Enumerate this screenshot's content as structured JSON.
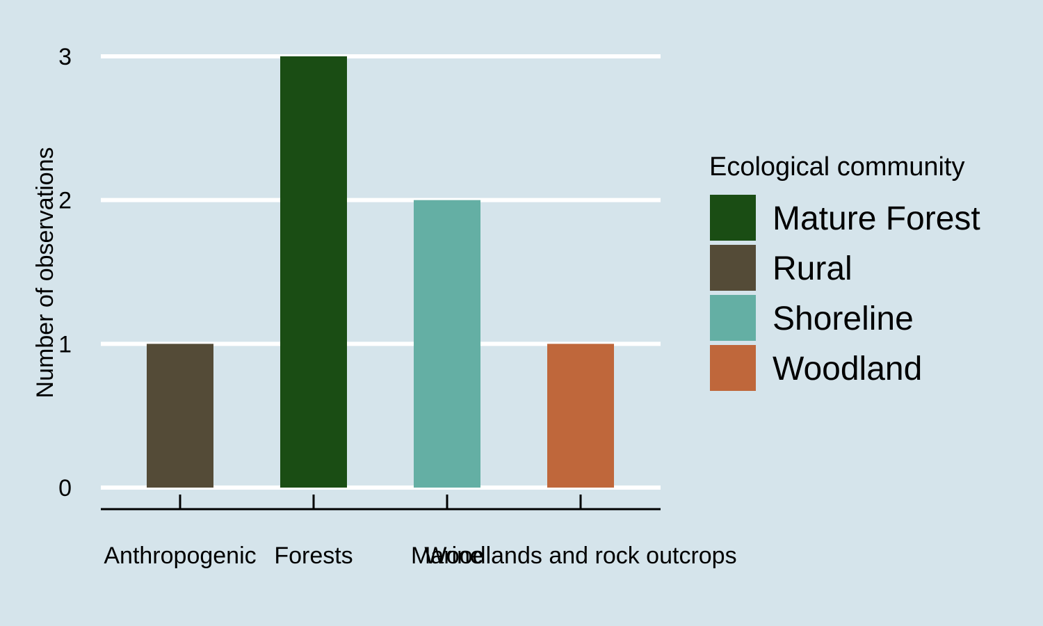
{
  "chart_data": {
    "type": "bar",
    "title": "",
    "xlabel": "",
    "ylabel": "Number of observations",
    "categories": [
      "Anthropogenic",
      "Forests",
      "Marine",
      "Woodlands and rock outcrops"
    ],
    "values": [
      1,
      3,
      2,
      1
    ],
    "bar_groups": [
      "Rural",
      "Mature Forest",
      "Shoreline",
      "Woodland"
    ],
    "yticks": [
      0,
      1,
      2,
      3
    ],
    "ylim": [
      0,
      3
    ],
    "grid": "horizontal",
    "legend": {
      "title": "Ecological community",
      "placement": "right",
      "entries": [
        {
          "name": "Mature Forest",
          "color": "#1a4d14"
        },
        {
          "name": "Rural",
          "color": "#544b37"
        },
        {
          "name": "Shoreline",
          "color": "#64afa4"
        },
        {
          "name": "Woodland",
          "color": "#bf673b"
        }
      ]
    },
    "colors": {
      "background": "#d5e4eb",
      "grid": "#ffffff",
      "axis": "#000000"
    }
  }
}
